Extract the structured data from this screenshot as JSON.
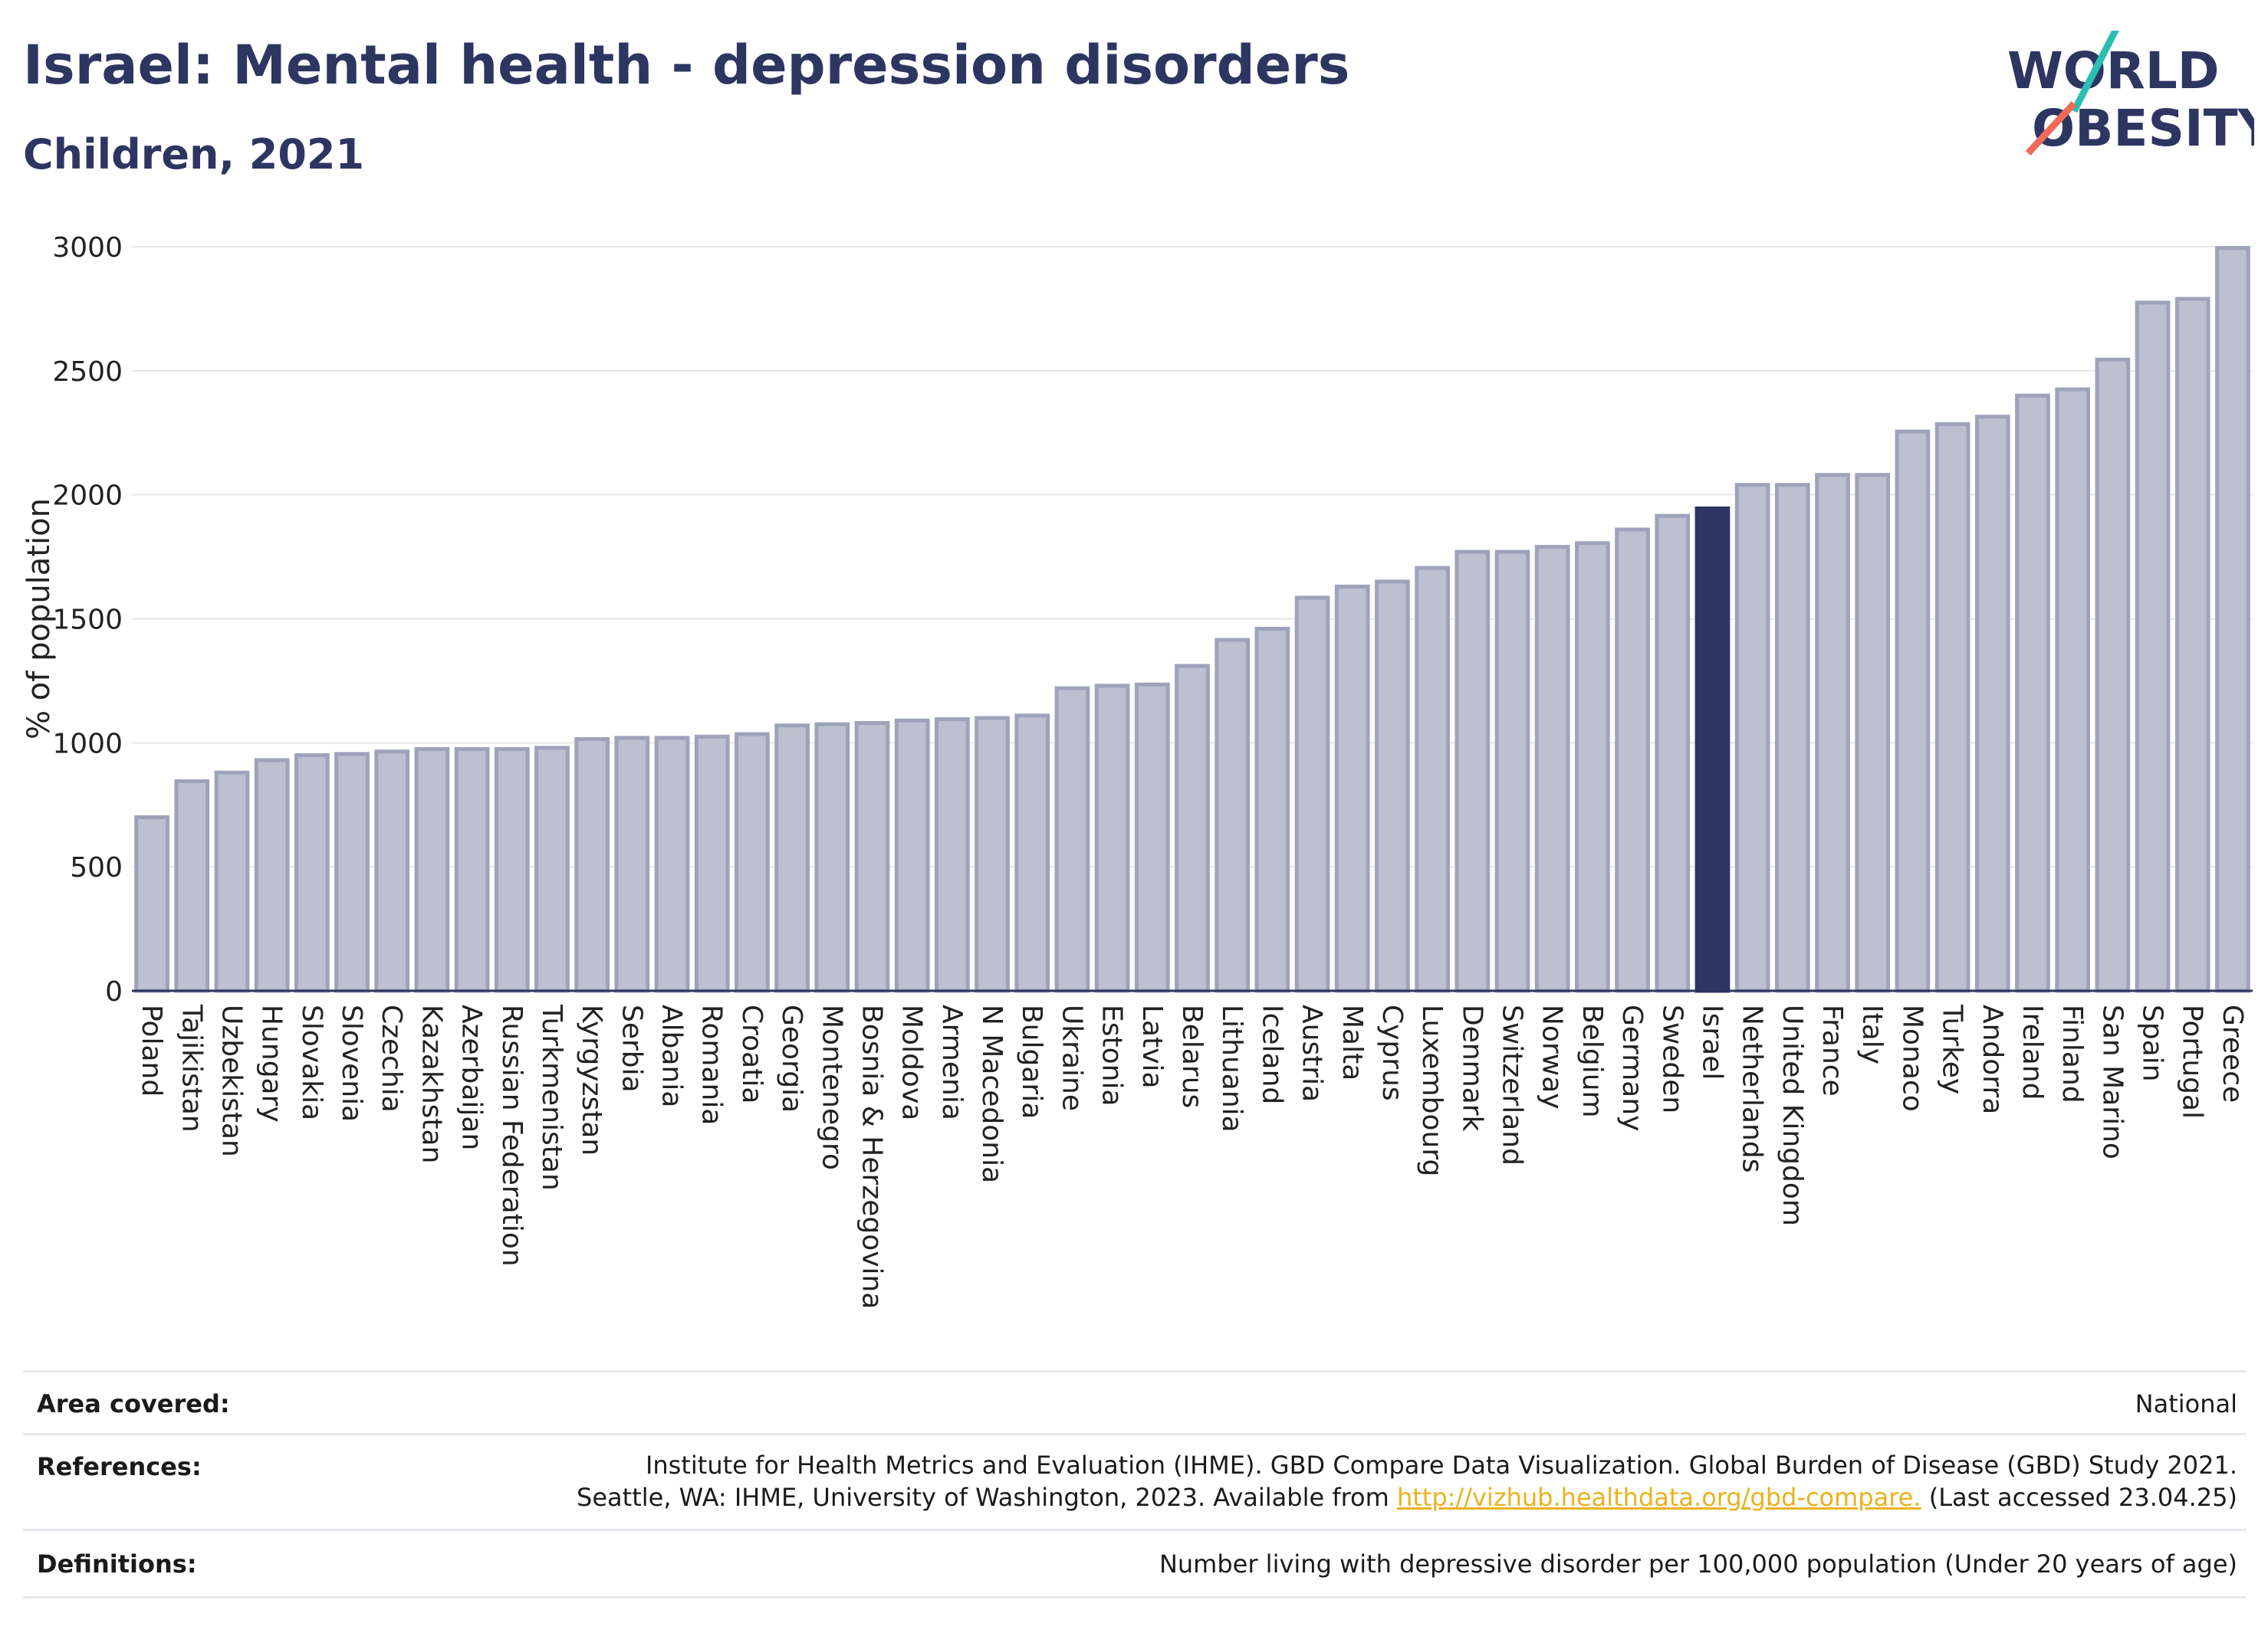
{
  "title": "Israel: Mental health - depression disorders",
  "subtitle": "Children, 2021",
  "logo": {
    "line1": "WORLD",
    "line2": "OBESITY",
    "slash_colors": [
      "#2bbfb3",
      "#ef6b57"
    ]
  },
  "colors": {
    "bar": "#bcc0d0",
    "bar_stroke": "#9ea3bb",
    "highlight": "#2d3561",
    "grid": "#e5e7eb",
    "axis": "#2d3561"
  },
  "chart_data": {
    "type": "bar",
    "title": "Israel: Mental health - depression disorders",
    "subtitle": "Children, 2021",
    "ylabel": "% of population",
    "xlabel": "",
    "ylim": [
      0,
      3000
    ],
    "yticks": [
      0,
      500,
      1000,
      1500,
      2000,
      2500,
      3000
    ],
    "grid": true,
    "highlight": "Israel",
    "categories": [
      "Poland",
      "Tajikistan",
      "Uzbekistan",
      "Hungary",
      "Slovakia",
      "Slovenia",
      "Czechia",
      "Kazakhstan",
      "Azerbaijan",
      "Russian Federation",
      "Turkmenistan",
      "Kyrgyzstan",
      "Serbia",
      "Albania",
      "Romania",
      "Croatia",
      "Georgia",
      "Montenegro",
      "Bosnia & Herzegovina",
      "Moldova",
      "Armenia",
      "N Macedonia",
      "Bulgaria",
      "Ukraine",
      "Estonia",
      "Latvia",
      "Belarus",
      "Lithuania",
      "Iceland",
      "Austria",
      "Malta",
      "Cyprus",
      "Luxembourg",
      "Denmark",
      "Switzerland",
      "Norway",
      "Belgium",
      "Germany",
      "Sweden",
      "Israel",
      "Netherlands",
      "United Kingdom",
      "France",
      "Italy",
      "Monaco",
      "Turkey",
      "Andorra",
      "Ireland",
      "Finland",
      "San Marino",
      "Spain",
      "Portugal",
      "Greece"
    ],
    "values": [
      700,
      845,
      880,
      930,
      950,
      955,
      965,
      975,
      975,
      975,
      980,
      1015,
      1020,
      1020,
      1025,
      1035,
      1070,
      1075,
      1080,
      1090,
      1095,
      1100,
      1110,
      1220,
      1230,
      1235,
      1310,
      1415,
      1460,
      1585,
      1630,
      1650,
      1705,
      1770,
      1770,
      1790,
      1805,
      1860,
      1915,
      1945,
      2040,
      2040,
      2080,
      2080,
      2255,
      2285,
      2315,
      2400,
      2425,
      2545,
      2775,
      2790,
      2995
    ]
  },
  "footer": {
    "area_label": "Area covered:",
    "area_value": "National",
    "references_label": "References:",
    "references_line1": "Institute for Health Metrics and Evaluation (IHME). GBD Compare Data Visualization. Global Burden of Disease (GBD) Study 2021.",
    "references_line2_pre": "Seattle, WA: IHME, University of Washington, 2023. Available from ",
    "references_link": "http://vizhub.healthdata.org/gbd-compare.",
    "references_line2_post": " (Last accessed 23.04.25)",
    "definitions_label": "Definitions:",
    "definitions_value": "Number living with depressive disorder per 100,000 population (Under 20 years of age)"
  }
}
